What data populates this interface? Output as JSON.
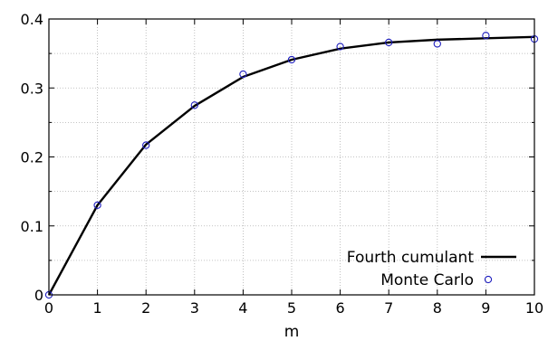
{
  "chart_data": {
    "type": "line",
    "title": "",
    "xlabel": "m",
    "ylabel": "",
    "xlim": [
      0,
      10
    ],
    "ylim": [
      0,
      0.4
    ],
    "grid": true,
    "legend_position": "bottom-right",
    "x_ticks": [
      0,
      1,
      2,
      3,
      4,
      5,
      6,
      7,
      8,
      9,
      10
    ],
    "x_tick_labels": [
      "0",
      "1",
      "2",
      "3",
      "4",
      "5",
      "6",
      "7",
      "8",
      "9",
      "10"
    ],
    "y_ticks": [
      0,
      0.1,
      0.2,
      0.3,
      0.4
    ],
    "y_tick_labels": [
      "0",
      "0.1",
      "0.2",
      "0.3",
      "0.4"
    ],
    "series": [
      {
        "name": "Fourth cumulant",
        "style": "line",
        "color": "#000000",
        "x": [
          0,
          1,
          2,
          3,
          4,
          5,
          6,
          7,
          8,
          9,
          10
        ],
        "y": [
          0,
          0.13,
          0.218,
          0.274,
          0.316,
          0.341,
          0.357,
          0.366,
          0.37,
          0.372,
          0.374
        ]
      },
      {
        "name": "Monte Carlo",
        "style": "marker",
        "color": "#1f1fbf",
        "x": [
          0,
          1,
          2,
          3,
          4,
          5,
          6,
          7,
          8,
          9,
          10
        ],
        "y": [
          0,
          0.13,
          0.217,
          0.275,
          0.32,
          0.341,
          0.36,
          0.366,
          0.364,
          0.376,
          0.371
        ]
      }
    ]
  }
}
